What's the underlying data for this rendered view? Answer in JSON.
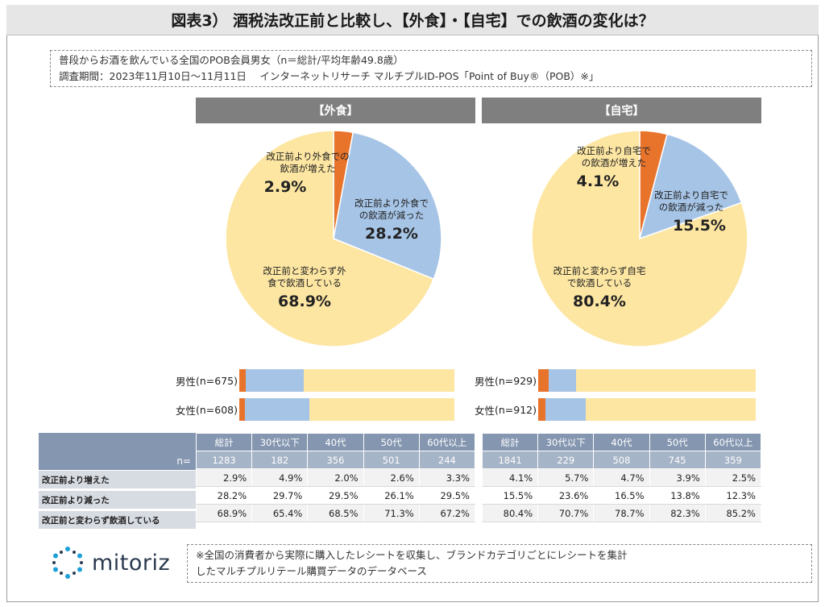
{
  "title": "図表3） 酒税法改正前と比較し、【外食】・【自宅】での飲酒の変化は？",
  "survey": {
    "line1": "普段からお酒を飲んでいる全国のPOB会員男女（n＝総計/平均年齢49.8歳）",
    "line2": "調査期間：2023年11月10日〜11月11日　 インターネットリサーチ マルチプルID-POS「Point of Buy®（POB）※」"
  },
  "colors": {
    "increase": "#e8742c",
    "decrease": "#a6c4e6",
    "same": "#fde6a2",
    "header": "#8496b0"
  },
  "chart_data": [
    {
      "type": "pie",
      "title": "【外食】",
      "series": [
        {
          "name": "改正前より外食での飲酒が増えた",
          "value": 2.9
        },
        {
          "name": "改正前より外食での飲酒が減った",
          "value": 28.2
        },
        {
          "name": "改正前と変わらず外食で飲酒している",
          "value": 68.9
        }
      ]
    },
    {
      "type": "pie",
      "title": "【自宅】",
      "series": [
        {
          "name": "改正前より自宅での飲酒が増えた",
          "value": 4.1
        },
        {
          "name": "改正前より自宅での飲酒が減った",
          "value": 15.5
        },
        {
          "name": "改正前と変わらず自宅で飲酒している",
          "value": 80.4
        }
      ]
    },
    {
      "type": "bar",
      "stacked": true,
      "title": "【外食】",
      "categories": [
        "男性(n=675)",
        "女性(n=608)"
      ],
      "series": [
        {
          "name": "増えた",
          "values": [
            3.1,
            2.6
          ]
        },
        {
          "name": "減った",
          "values": [
            26.7,
            29.9
          ]
        },
        {
          "name": "変わらず",
          "values": [
            70.2,
            67.4
          ]
        }
      ]
    },
    {
      "type": "bar",
      "stacked": true,
      "title": "【自宅】",
      "categories": [
        "男性(n=929)",
        "女性(n=912)"
      ],
      "series": [
        {
          "name": "増えた",
          "values": [
            4.8,
            3.3
          ]
        },
        {
          "name": "減った",
          "values": [
            12.6,
            18.4
          ]
        },
        {
          "name": "変わらず",
          "values": [
            82.6,
            78.3
          ]
        }
      ]
    },
    {
      "type": "table",
      "title": "【外食】",
      "columns": [
        "総計",
        "30代以下",
        "40代",
        "50代",
        "60代以上"
      ],
      "n": [
        "1283",
        "182",
        "356",
        "501",
        "244"
      ],
      "rows": [
        [
          "2.9%",
          "4.9%",
          "2.0%",
          "2.6%",
          "3.3%"
        ],
        [
          "28.2%",
          "29.7%",
          "29.5%",
          "26.1%",
          "29.5%"
        ],
        [
          "68.9%",
          "65.4%",
          "68.5%",
          "71.3%",
          "67.2%"
        ]
      ]
    },
    {
      "type": "table",
      "title": "【自宅】",
      "columns": [
        "総計",
        "30代以下",
        "40代",
        "50代",
        "60代以上"
      ],
      "n": [
        "1841",
        "229",
        "508",
        "745",
        "359"
      ],
      "rows": [
        [
          "4.1%",
          "5.7%",
          "4.7%",
          "3.9%",
          "2.5%"
        ],
        [
          "15.5%",
          "23.6%",
          "16.5%",
          "13.8%",
          "12.3%"
        ],
        [
          "80.4%",
          "70.7%",
          "78.7%",
          "82.3%",
          "85.2%"
        ]
      ]
    }
  ],
  "pie_labels": {
    "out": [
      [
        "改正前より外食での",
        "飲酒が増えた"
      ],
      [
        "改正前より外食で",
        "の飲酒が減った"
      ],
      [
        "改正前と変わらず外",
        "食で飲酒している"
      ]
    ],
    "home": [
      [
        "改正前より自宅で",
        "の飲酒が増えた"
      ],
      [
        "改正前より自宅で",
        "の飲酒が減った"
      ],
      [
        "改正前と変わらず自宅",
        "で飲酒している"
      ]
    ]
  },
  "bar_labels": {
    "out": [
      {
        "label": "男性",
        "n": "(n=675)"
      },
      {
        "label": "女性",
        "n": "(n=608)"
      }
    ],
    "home": [
      {
        "label": "男性",
        "n": "(n=929)"
      },
      {
        "label": "女性",
        "n": "(n=912)"
      }
    ]
  },
  "table": {
    "n_label": "n=",
    "row_labels": [
      "改正前より増えた",
      "改正前より減った",
      "改正前と変わらず飲酒している"
    ]
  },
  "logo_text": "mitoriz",
  "note": {
    "line1": "※全国の消費者から実際に購入したレシートを収集し、ブランドカテゴリごとにレシートを集計",
    "line2": "したマルチプルリテール購買データのデータベース"
  }
}
